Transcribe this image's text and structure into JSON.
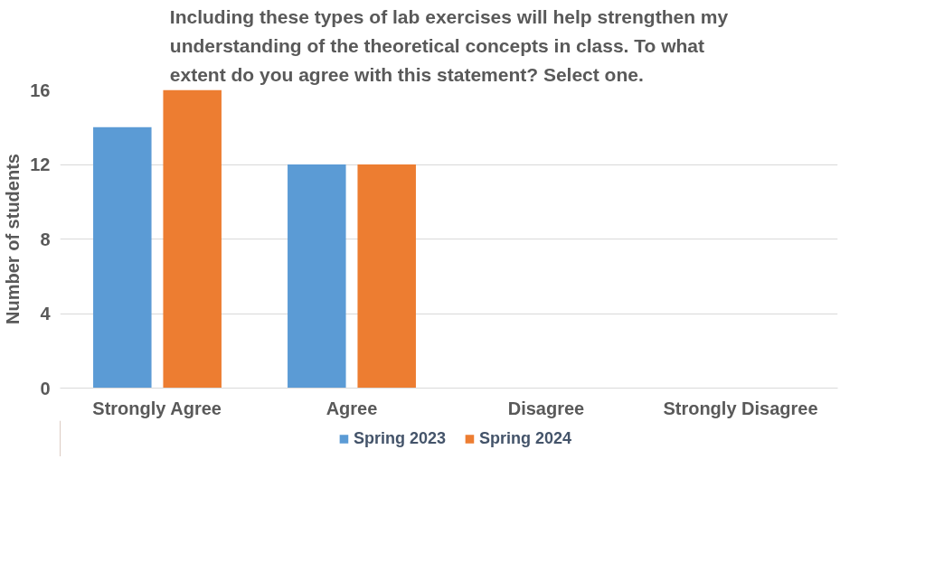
{
  "chart_data": {
    "type": "bar",
    "title": "Including these types of lab exercises will help strengthen my understanding of the theoretical concepts in class. To what extent do you agree with this statement? Select one.",
    "ylabel": "Number of students",
    "categories": [
      "Strongly Agree",
      "Agree",
      "Disagree",
      "Strongly Disagree"
    ],
    "series": [
      {
        "name": "Spring 2023",
        "color": "#5b9bd5",
        "values": [
          14,
          12,
          0,
          0
        ]
      },
      {
        "name": "Spring 2024",
        "color": "#ed7d31",
        "values": [
          16,
          12,
          0,
          0
        ]
      }
    ],
    "ylim": [
      0,
      16
    ],
    "yticks": [
      0,
      4,
      8,
      12,
      16
    ],
    "grid": "y",
    "legend": "bottom"
  }
}
